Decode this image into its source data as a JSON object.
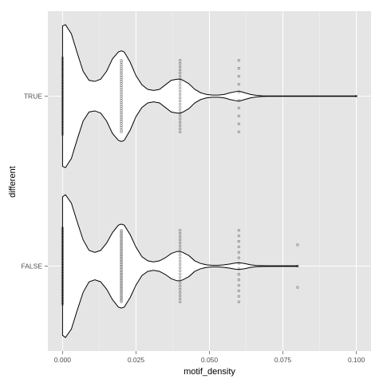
{
  "chart_data": {
    "type": "violin",
    "orientation": "horizontal",
    "xlabel": "motif_density",
    "ylabel": "different",
    "xlim": [
      -0.005,
      0.105
    ],
    "x_ticks": [
      0.0,
      0.025,
      0.05,
      0.075,
      0.1
    ],
    "x_tick_labels": [
      "0.000",
      "0.025",
      "0.050",
      "0.075",
      "0.100"
    ],
    "categories": [
      "TRUE",
      "FALSE"
    ],
    "grid": true,
    "colors": {
      "panel_background": "#e5e5e5",
      "gridline": "#ffffff",
      "violin_fill": "#ffffff",
      "violin_outline": "#000000",
      "points": "#000000"
    },
    "series": [
      {
        "category": "TRUE",
        "density": [
          [
            0.0,
            0.62
          ],
          [
            0.001,
            0.63
          ],
          [
            0.003,
            0.55
          ],
          [
            0.005,
            0.38
          ],
          [
            0.007,
            0.22
          ],
          [
            0.009,
            0.14
          ],
          [
            0.011,
            0.13
          ],
          [
            0.013,
            0.15
          ],
          [
            0.015,
            0.22
          ],
          [
            0.017,
            0.33
          ],
          [
            0.019,
            0.39
          ],
          [
            0.02,
            0.4
          ],
          [
            0.021,
            0.39
          ],
          [
            0.023,
            0.3
          ],
          [
            0.025,
            0.18
          ],
          [
            0.027,
            0.1
          ],
          [
            0.029,
            0.06
          ],
          [
            0.031,
            0.05
          ],
          [
            0.033,
            0.06
          ],
          [
            0.035,
            0.1
          ],
          [
            0.037,
            0.14
          ],
          [
            0.039,
            0.15
          ],
          [
            0.04,
            0.15
          ],
          [
            0.041,
            0.14
          ],
          [
            0.043,
            0.11
          ],
          [
            0.045,
            0.06
          ],
          [
            0.047,
            0.03
          ],
          [
            0.049,
            0.015
          ],
          [
            0.051,
            0.01
          ],
          [
            0.053,
            0.01
          ],
          [
            0.055,
            0.015
          ],
          [
            0.057,
            0.03
          ],
          [
            0.059,
            0.04
          ],
          [
            0.06,
            0.045
          ],
          [
            0.062,
            0.03
          ],
          [
            0.064,
            0.015
          ],
          [
            0.066,
            0.007
          ],
          [
            0.068,
            0.003
          ],
          [
            0.07,
            0.002
          ],
          [
            0.075,
            0.002
          ],
          [
            0.08,
            0.002
          ],
          [
            0.085,
            0.002
          ],
          [
            0.09,
            0.002
          ],
          [
            0.095,
            0.002
          ],
          [
            0.1,
            0.002
          ]
        ],
        "points": [
          {
            "x": 0.0,
            "n": 40,
            "spread": 0.45
          },
          {
            "x": 0.02,
            "n": 35,
            "spread": 0.42
          },
          {
            "x": 0.04,
            "n": 24,
            "spread": 0.42
          },
          {
            "x": 0.06,
            "n": 10,
            "spread": 0.42
          },
          {
            "x": 0.1,
            "n": 1,
            "spread": 0.0
          }
        ]
      },
      {
        "category": "FALSE",
        "density": [
          [
            0.0,
            0.66
          ],
          [
            0.001,
            0.68
          ],
          [
            0.003,
            0.6
          ],
          [
            0.005,
            0.42
          ],
          [
            0.007,
            0.25
          ],
          [
            0.009,
            0.15
          ],
          [
            0.011,
            0.13
          ],
          [
            0.013,
            0.15
          ],
          [
            0.015,
            0.22
          ],
          [
            0.017,
            0.32
          ],
          [
            0.019,
            0.39
          ],
          [
            0.02,
            0.4
          ],
          [
            0.021,
            0.39
          ],
          [
            0.023,
            0.3
          ],
          [
            0.025,
            0.18
          ],
          [
            0.027,
            0.09
          ],
          [
            0.029,
            0.05
          ],
          [
            0.031,
            0.04
          ],
          [
            0.033,
            0.05
          ],
          [
            0.035,
            0.08
          ],
          [
            0.037,
            0.12
          ],
          [
            0.039,
            0.14
          ],
          [
            0.04,
            0.14
          ],
          [
            0.041,
            0.13
          ],
          [
            0.043,
            0.1
          ],
          [
            0.045,
            0.05
          ],
          [
            0.047,
            0.025
          ],
          [
            0.049,
            0.012
          ],
          [
            0.051,
            0.008
          ],
          [
            0.053,
            0.008
          ],
          [
            0.055,
            0.012
          ],
          [
            0.057,
            0.02
          ],
          [
            0.059,
            0.03
          ],
          [
            0.06,
            0.032
          ],
          [
            0.062,
            0.025
          ],
          [
            0.064,
            0.012
          ],
          [
            0.066,
            0.006
          ],
          [
            0.068,
            0.004
          ],
          [
            0.07,
            0.003
          ],
          [
            0.075,
            0.003
          ],
          [
            0.08,
            0.003
          ]
        ],
        "points": [
          {
            "x": 0.0,
            "n": 50,
            "spread": 0.45
          },
          {
            "x": 0.02,
            "n": 45,
            "spread": 0.42
          },
          {
            "x": 0.04,
            "n": 24,
            "spread": 0.42
          },
          {
            "x": 0.06,
            "n": 14,
            "spread": 0.42
          },
          {
            "x": 0.08,
            "n": 3,
            "spread": 0.25
          }
        ]
      }
    ]
  }
}
